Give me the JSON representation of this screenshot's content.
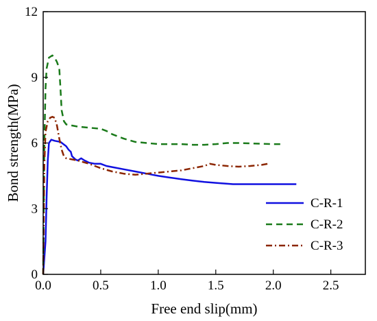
{
  "chart_data": {
    "type": "line",
    "title": "",
    "xlabel": "Free end slip(mm)",
    "ylabel": "Bond strength(MPa)",
    "xlim": [
      0,
      2.8
    ],
    "ylim": [
      0,
      12
    ],
    "xticks": [
      0.0,
      0.5,
      1.0,
      1.5,
      2.0,
      2.5
    ],
    "xtick_labels": [
      "0.0",
      "0.5",
      "1.0",
      "1.5",
      "2.0",
      "2.5"
    ],
    "yticks": [
      0,
      3,
      6,
      9,
      12
    ],
    "ytick_labels": [
      "0",
      "3",
      "6",
      "9",
      "12"
    ],
    "grid": false,
    "legend_position": "bottom-right",
    "series": [
      {
        "name": "C-R-1",
        "color": "#1010e0",
        "style": "solid",
        "x": [
          0,
          0.02,
          0.03,
          0.04,
          0.05,
          0.07,
          0.1,
          0.15,
          0.2,
          0.22,
          0.24,
          0.25,
          0.28,
          0.3,
          0.33,
          0.36,
          0.4,
          0.45,
          0.5,
          0.55,
          0.6,
          0.7,
          0.8,
          0.9,
          1.0,
          1.1,
          1.2,
          1.3,
          1.4,
          1.5,
          1.6,
          1.65,
          1.7,
          1.8,
          2.0,
          2.2
        ],
        "y": [
          0,
          1.5,
          3.5,
          5.2,
          6.0,
          6.15,
          6.1,
          6.05,
          5.85,
          5.7,
          5.6,
          5.4,
          5.25,
          5.2,
          5.3,
          5.2,
          5.1,
          5.05,
          5.05,
          4.95,
          4.9,
          4.8,
          4.7,
          4.6,
          4.5,
          4.42,
          4.35,
          4.28,
          4.22,
          4.18,
          4.14,
          4.12,
          4.12,
          4.12,
          4.12,
          4.12
        ]
      },
      {
        "name": "C-R-2",
        "color": "#1a7a1a",
        "style": "dashed",
        "x": [
          0,
          0.01,
          0.02,
          0.03,
          0.05,
          0.08,
          0.1,
          0.12,
          0.14,
          0.15,
          0.16,
          0.18,
          0.2,
          0.25,
          0.3,
          0.4,
          0.5,
          0.55,
          0.6,
          0.7,
          0.8,
          0.9,
          1.0,
          1.1,
          1.2,
          1.3,
          1.4,
          1.5,
          1.6,
          1.7,
          1.8,
          2.0,
          2.08
        ],
        "y": [
          0,
          6.0,
          8.5,
          9.4,
          9.9,
          10.0,
          9.9,
          9.7,
          9.4,
          8.5,
          7.5,
          7.0,
          6.85,
          6.8,
          6.75,
          6.7,
          6.65,
          6.55,
          6.4,
          6.2,
          6.05,
          6.0,
          5.95,
          5.95,
          5.95,
          5.92,
          5.92,
          5.95,
          6.0,
          6.0,
          5.98,
          5.95,
          5.95
        ]
      },
      {
        "name": "C-R-3",
        "color": "#8b2500",
        "style": "dashdot",
        "x": [
          0,
          0.01,
          0.02,
          0.04,
          0.06,
          0.08,
          0.1,
          0.12,
          0.14,
          0.16,
          0.18,
          0.2,
          0.25,
          0.3,
          0.4,
          0.5,
          0.6,
          0.7,
          0.8,
          0.9,
          1.0,
          1.1,
          1.2,
          1.3,
          1.4,
          1.45,
          1.5,
          1.6,
          1.7,
          1.8,
          1.9,
          1.95
        ],
        "y": [
          0,
          5.0,
          6.5,
          7.0,
          7.15,
          7.2,
          7.15,
          6.8,
          6.2,
          5.7,
          5.4,
          5.3,
          5.25,
          5.2,
          5.05,
          4.85,
          4.7,
          4.6,
          4.55,
          4.6,
          4.65,
          4.7,
          4.75,
          4.85,
          4.95,
          5.05,
          5.0,
          4.95,
          4.92,
          4.95,
          5.0,
          5.05
        ]
      }
    ]
  }
}
